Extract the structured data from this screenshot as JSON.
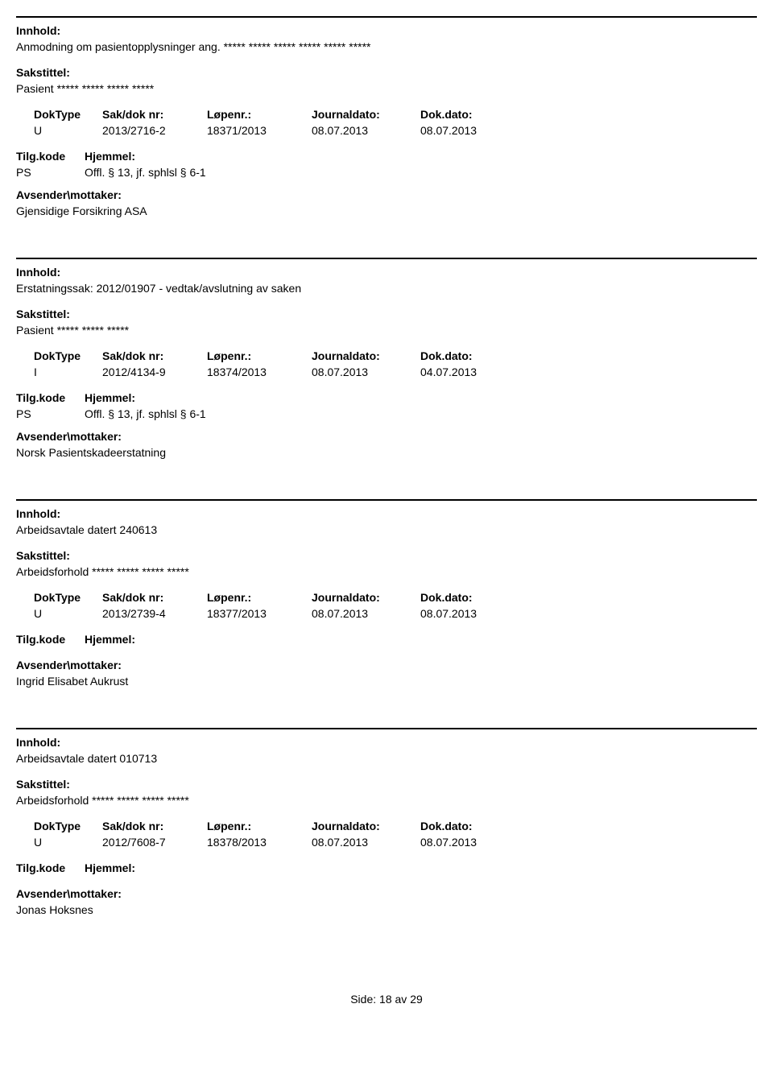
{
  "labels": {
    "innhold": "Innhold:",
    "sakstittel": "Sakstittel:",
    "doktype": "DokType",
    "sakdoknr": "Sak/dok nr:",
    "lopenr": "Løpenr.:",
    "journaldato": "Journaldato:",
    "dokdato": "Dok.dato:",
    "tilgkode": "Tilg.kode",
    "hjemmel": "Hjemmel:",
    "avsender": "Avsender\\mottaker:"
  },
  "entries": [
    {
      "innhold": "Anmodning om pasientopplysninger ang. ***** ***** ***** ***** ***** *****",
      "sakstittel": "Pasient ***** ***** ***** *****",
      "doktype": "U",
      "sakdoknr": "2013/2716-2",
      "lopenr": "18371/2013",
      "journaldato": "08.07.2013",
      "dokdato": "08.07.2013",
      "tilgkode": "PS",
      "hjemmel": "Offl. § 13, jf. sphlsl § 6-1",
      "avsender": "Gjensidige Forsikring ASA"
    },
    {
      "innhold": "Erstatningssak: 2012/01907 - vedtak/avslutning av saken",
      "sakstittel": "Pasient ***** ***** *****",
      "doktype": "I",
      "sakdoknr": "2012/4134-9",
      "lopenr": "18374/2013",
      "journaldato": "08.07.2013",
      "dokdato": "04.07.2013",
      "tilgkode": "PS",
      "hjemmel": "Offl. § 13, jf. sphlsl § 6-1",
      "avsender": "Norsk Pasientskadeerstatning"
    },
    {
      "innhold": "Arbeidsavtale datert 240613",
      "sakstittel": "Arbeidsforhold ***** ***** ***** *****",
      "doktype": "U",
      "sakdoknr": "2013/2739-4",
      "lopenr": "18377/2013",
      "journaldato": "08.07.2013",
      "dokdato": "08.07.2013",
      "tilgkode": "",
      "hjemmel": "",
      "avsender": "Ingrid Elisabet Aukrust"
    },
    {
      "innhold": "Arbeidsavtale datert 010713",
      "sakstittel": "Arbeidsforhold ***** ***** ***** *****",
      "doktype": "U",
      "sakdoknr": "2012/7608-7",
      "lopenr": "18378/2013",
      "journaldato": "08.07.2013",
      "dokdato": "08.07.2013",
      "tilgkode": "",
      "hjemmel": "",
      "avsender": "Jonas Hoksnes"
    }
  ],
  "footer": {
    "side_label": "Side:",
    "page_current": "18",
    "av_label": "av",
    "page_total": "29"
  }
}
